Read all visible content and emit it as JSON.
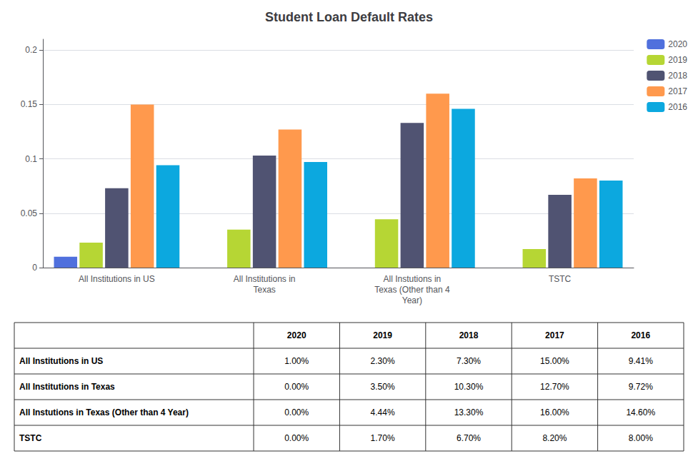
{
  "chart_data": {
    "type": "bar",
    "title": "Student Loan Default Rates",
    "categories": [
      "All Institutions in US",
      "All Institutions in\nTexas",
      "All Instutions in\nTexas (Other than 4\nYear)",
      "TSTC"
    ],
    "series": [
      {
        "name": "2020",
        "values": [
          0.01,
          0,
          0,
          0
        ]
      },
      {
        "name": "2019",
        "values": [
          0.023,
          0.035,
          0.0444,
          0.017
        ]
      },
      {
        "name": "2018",
        "values": [
          0.073,
          0.103,
          0.133,
          0.067
        ]
      },
      {
        "name": "2017",
        "values": [
          0.15,
          0.127,
          0.16,
          0.082
        ]
      },
      {
        "name": "2016",
        "values": [
          0.0941,
          0.0972,
          0.146,
          0.08
        ]
      }
    ],
    "ylim": [
      0,
      0.21
    ],
    "yticks": [
      0,
      0.05,
      0.1,
      0.15,
      0.2
    ],
    "grid": true,
    "legend": "right",
    "table": {
      "header": [
        "2020",
        "2019",
        "2018",
        "2017",
        "2016"
      ],
      "rows": [
        [
          "All Institutions in US",
          "1.00%",
          "2.30%",
          "7.30%",
          "15.00%",
          "9.41%"
        ],
        [
          "All Institutions in Texas",
          "0.00%",
          "3.50%",
          "10.30%",
          "12.70%",
          "9.72%"
        ],
        [
          "All Instutions in Texas (Other than 4 Year)",
          "0.00%",
          "4.44%",
          "13.30%",
          "16.00%",
          "14.60%"
        ],
        [
          "TSTC",
          "0.00%",
          "1.70%",
          "6.70%",
          "8.20%",
          "8.00%"
        ]
      ]
    }
  }
}
